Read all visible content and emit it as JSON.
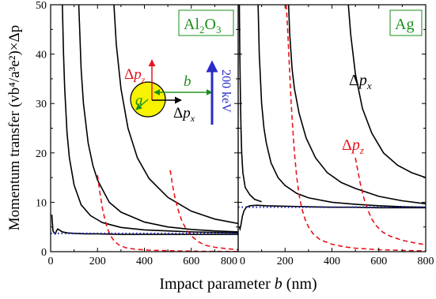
{
  "chart_data": [
    {
      "type": "line",
      "panel_label_main": "Al",
      "panel_label_sub1": "2",
      "panel_label_mid": "O",
      "panel_label_sub2": "3",
      "xlim": [
        0,
        800
      ],
      "ylim": [
        0,
        50
      ],
      "xticks": [
        "0",
        "200",
        "400",
        "600",
        "800"
      ],
      "yticks": [
        "0",
        "10",
        "20",
        "30",
        "40",
        "50"
      ],
      "series": [
        {
          "kind": "dpx",
          "color": "#000000",
          "x": [
            50,
            55,
            60,
            70,
            80,
            100,
            130,
            170,
            220,
            300,
            400,
            500,
            600,
            700,
            800
          ],
          "y": [
            50,
            40,
            33,
            24,
            19,
            13.5,
            9.5,
            7.3,
            5.9,
            4.9,
            4.4,
            4.2,
            4.0,
            3.9,
            3.8
          ]
        },
        {
          "kind": "dpx",
          "color": "#000000",
          "x": [
            120,
            130,
            140,
            160,
            180,
            200,
            250,
            300,
            400,
            500,
            600,
            700,
            800
          ],
          "y": [
            50,
            37,
            30,
            22,
            17.5,
            14.5,
            10,
            8,
            6,
            5,
            4.5,
            4.2,
            4.0
          ]
        },
        {
          "kind": "dpx",
          "color": "#000000",
          "x": [
            270,
            280,
            300,
            330,
            370,
            420,
            500,
            600,
            700,
            800
          ],
          "y": [
            50,
            42,
            33,
            25,
            19,
            14.8,
            11,
            8.2,
            6.6,
            5.7
          ]
        },
        {
          "kind": "dpx",
          "color": "#000000",
          "x": [
            5,
            10,
            15,
            20,
            25,
            30,
            40,
            50,
            70,
            100,
            150,
            200,
            300,
            400,
            500,
            600,
            700,
            800
          ],
          "y": [
            7.5,
            4.2,
            3.8,
            3.6,
            4.2,
            4.6,
            4.3,
            4.0,
            3.8,
            3.7,
            3.6,
            3.6,
            3.5,
            3.5,
            3.5,
            3.5,
            3.5,
            3.5
          ]
        },
        {
          "kind": "dpz",
          "color": "#e8141b",
          "x": [
            200,
            210,
            220,
            230,
            240,
            255,
            270,
            290,
            320,
            360,
            420,
            500,
            600,
            700,
            800
          ],
          "y": [
            15.5,
            12,
            9,
            6.8,
            5,
            3.3,
            2.2,
            1.4,
            0.8,
            0.5,
            0.3,
            0.2,
            0.1,
            0.05,
            0.02
          ]
        },
        {
          "kind": "dpz",
          "color": "#e8141b",
          "x": [
            510,
            520,
            530,
            545,
            560,
            580,
            600,
            630,
            660,
            700,
            750,
            800
          ],
          "y": [
            16.5,
            13.5,
            11,
            8.3,
            6.2,
            4.4,
            3.2,
            2.0,
            1.3,
            0.9,
            0.6,
            0.4
          ]
        },
        {
          "kind": "classical",
          "color": "#1a1ab3",
          "x": [
            0,
            100,
            200,
            300,
            400,
            500,
            600,
            700,
            800
          ],
          "y": [
            3.7,
            3.7,
            3.7,
            3.7,
            3.7,
            3.7,
            3.7,
            3.7,
            3.7
          ]
        }
      ]
    },
    {
      "type": "line",
      "panel_label": "Ag",
      "xlim": [
        0,
        800
      ],
      "ylim": [
        0,
        50
      ],
      "xticks": [
        "0",
        "200",
        "400",
        "600",
        "800"
      ],
      "yticks": [
        "0",
        "10",
        "20",
        "30",
        "40",
        "50"
      ],
      "series": [
        {
          "kind": "dpx",
          "color": "#000000",
          "x": [
            5,
            7,
            10,
            12,
            15,
            20,
            30,
            50,
            70,
            100
          ],
          "y": [
            50,
            40,
            30,
            25,
            20,
            16,
            13,
            11.5,
            10.6,
            10.1
          ]
        },
        {
          "kind": "dpx",
          "color": "#000000",
          "x": [
            85,
            90,
            100,
            110,
            120,
            140,
            170,
            200,
            250,
            300,
            400,
            500,
            600,
            700,
            800
          ],
          "y": [
            50,
            40,
            30,
            25,
            22,
            18,
            15,
            13.4,
            11.8,
            10.9,
            10.0,
            9.6,
            9.3,
            9.1,
            9.0
          ]
        },
        {
          "kind": "dpx",
          "color": "#000000",
          "x": [
            215,
            220,
            230,
            240,
            260,
            290,
            330,
            380,
            440,
            500,
            600,
            700,
            800
          ],
          "y": [
            50,
            44,
            37,
            33,
            28,
            23,
            19,
            16,
            14,
            12.8,
            11.2,
            10.3,
            9.7
          ]
        },
        {
          "kind": "dpx",
          "color": "#000000",
          "x": [
            470,
            480,
            500,
            530,
            570,
            620,
            680,
            740,
            800
          ],
          "y": [
            50,
            44,
            36,
            29,
            24,
            20,
            17.5,
            16,
            15
          ]
        },
        {
          "kind": "dpx",
          "color": "#000000",
          "x": [
            5,
            8,
            12,
            18,
            25,
            35,
            50,
            80,
            120,
            200,
            300,
            400,
            500,
            600,
            700,
            800
          ],
          "y": [
            5,
            4.6,
            5.5,
            7.2,
            8.3,
            9,
            9.3,
            9.4,
            9.3,
            9.2,
            9.1,
            9.0,
            9.0,
            8.9,
            8.9,
            8.9
          ]
        },
        {
          "kind": "dpz",
          "color": "#e8141b",
          "x": [
            205,
            210,
            215,
            220,
            225,
            230,
            235,
            240,
            250,
            260,
            270,
            285,
            300,
            320,
            350,
            400,
            450,
            500,
            600,
            700,
            800
          ],
          "y": [
            50,
            46,
            41,
            36,
            31,
            27,
            23.5,
            20,
            15,
            11.5,
            9,
            6.6,
            5,
            3.6,
            2.4,
            1.5,
            1.0,
            0.7,
            0.4,
            0.25,
            0.15
          ]
        },
        {
          "kind": "dpz",
          "color": "#e8141b",
          "x": [
            500,
            510,
            520,
            530,
            540,
            555,
            570,
            590,
            615,
            650,
            700,
            750,
            800
          ],
          "y": [
            19,
            16.5,
            14,
            12,
            10.2,
            8.2,
            6.6,
            5.2,
            4.0,
            3.1,
            2.3,
            1.8,
            1.4
          ]
        },
        {
          "kind": "classical",
          "color": "#1a1ab3",
          "x": [
            0,
            100,
            200,
            300,
            400,
            500,
            600,
            700,
            800
          ],
          "y": [
            9,
            9,
            9,
            9,
            9,
            9,
            9,
            9,
            9
          ]
        }
      ],
      "annotation_dpx": {
        "delta": "Δ",
        "p": "p",
        "sub": "x"
      },
      "annotation_dpz": {
        "delta": "Δ",
        "p": "p",
        "sub": "z"
      }
    }
  ],
  "ylabel": "Momentum transfer (vb⁴/a³e²)×Δp",
  "xlabel_text": "Impact parameter ",
  "xlabel_var": "b",
  "xlabel_unit": " (nm)",
  "inset": {
    "dpz": {
      "delta": "Δ",
      "p": "p",
      "sub": "z"
    },
    "dpx": {
      "delta": "Δ",
      "p": "p",
      "sub": "x"
    },
    "a": "a",
    "b": "b",
    "beam": "200 keV"
  },
  "colors": {
    "dpz": "#e8141b",
    "dpx": "#000000",
    "classical": "#1a1ab3",
    "label_box": "#1a8f1a",
    "sphere_fill": "#f6f200",
    "arrow_green": "#1a8f1a",
    "beam_arrow": "#2b2bc8"
  }
}
